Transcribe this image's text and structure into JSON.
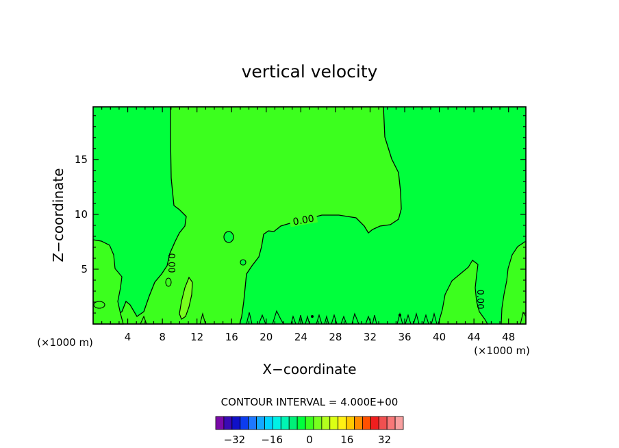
{
  "chart_data": {
    "type": "contour",
    "title": "vertical velocity",
    "xlabel": "X−coordinate",
    "ylabel": "Z−coordinate",
    "x_unit_left": "(×1000 m)",
    "x_unit_right": "(×1000 m)",
    "xlim": [
      0,
      50
    ],
    "ylim": [
      0,
      19.8
    ],
    "x_ticks": [
      4,
      8,
      12,
      16,
      20,
      24,
      28,
      32,
      36,
      40,
      44,
      48
    ],
    "y_ticks": [
      5,
      10,
      15
    ],
    "x_tick_labels": [
      "4",
      "8",
      "12",
      "16",
      "20",
      "24",
      "28",
      "32",
      "36",
      "40",
      "44",
      "48"
    ],
    "y_tick_labels": [
      "5",
      "10",
      "15"
    ],
    "contour_labels": [
      "0.00",
      "0.00",
      "0.00"
    ],
    "contour_interval_text": "CONTOUR INTERVAL = 4.000E+00",
    "colorbar": {
      "tick_labels": [
        "−32",
        "−16",
        "0",
        "16",
        "32"
      ],
      "tick_values": [
        -32,
        -16,
        0,
        16,
        32
      ],
      "range": [
        -40,
        40
      ],
      "colors": [
        "#7a0aa8",
        "#3a0ab4",
        "#1010c8",
        "#0c3cf0",
        "#1e78ff",
        "#14a8ff",
        "#00d2ff",
        "#00f0e6",
        "#00f5b4",
        "#00f078",
        "#00ff3c",
        "#3cff1e",
        "#78ff1e",
        "#b4ff1e",
        "#dcff14",
        "#fff014",
        "#ffc800",
        "#ff8c00",
        "#ff5000",
        "#f01e1e",
        "#f05050",
        "#f87878",
        "#f8a0a0"
      ]
    },
    "fill_colors": {
      "background": "#00ff3c",
      "positive": "#3cff1e",
      "strong_positive": "#78ff1e"
    },
    "grid": false
  }
}
